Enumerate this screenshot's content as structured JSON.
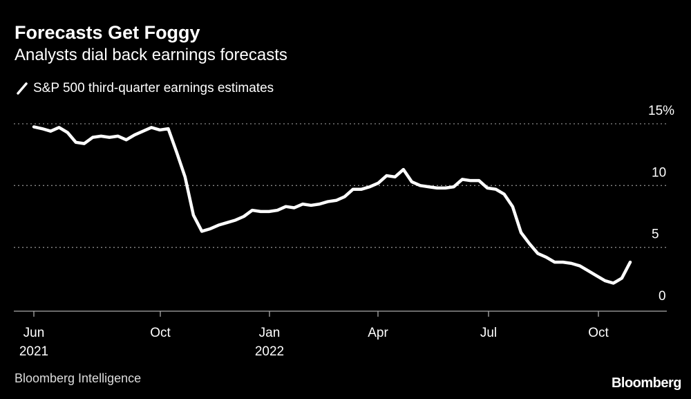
{
  "title": "Forecasts Get Foggy",
  "subtitle": "Analysts dial back earnings forecasts",
  "source": "Bloomberg Intelligence",
  "logo": "Bloomberg",
  "chart_data": {
    "type": "line",
    "title": "Forecasts Get Foggy",
    "subtitle": "Analysts dial back earnings forecasts",
    "ylim": [
      0,
      15
    ],
    "y_ticks": [
      "0",
      "5",
      "10",
      "15%"
    ],
    "y_tick_values": [
      0,
      5,
      10,
      15
    ],
    "x_ticks": [
      {
        "label": "Jun",
        "sub": "2021"
      },
      {
        "label": "Oct",
        "sub": ""
      },
      {
        "label": "Jan",
        "sub": "2022"
      },
      {
        "label": "Apr",
        "sub": ""
      },
      {
        "label": "Jul",
        "sub": ""
      },
      {
        "label": "Oct",
        "sub": ""
      }
    ],
    "grid": true,
    "legend_position": "top-left",
    "colors": {
      "background": "#000000",
      "line": "#ffffff",
      "grid": "#8a8a8a"
    },
    "series": [
      {
        "name": "S&P 500 third-quarter earnings estimates",
        "values": [
          14.75,
          14.6,
          14.4,
          14.7,
          14.3,
          13.5,
          13.4,
          13.9,
          14.0,
          13.9,
          14.0,
          13.7,
          14.1,
          14.4,
          14.7,
          14.5,
          14.6,
          12.7,
          10.7,
          7.6,
          6.3,
          6.5,
          6.8,
          7.0,
          7.2,
          7.5,
          8.0,
          7.9,
          7.9,
          8.0,
          8.3,
          8.2,
          8.5,
          8.4,
          8.5,
          8.7,
          8.8,
          9.1,
          9.7,
          9.7,
          9.9,
          10.2,
          10.8,
          10.7,
          11.3,
          10.3,
          10.0,
          9.9,
          9.8,
          9.8,
          9.9,
          10.5,
          10.4,
          10.4,
          9.8,
          9.7,
          9.3,
          8.3,
          6.2,
          5.3,
          4.5,
          4.2,
          3.8,
          3.8,
          3.7,
          3.5,
          3.1,
          2.7,
          2.3,
          2.1,
          2.5,
          3.8
        ]
      }
    ]
  }
}
